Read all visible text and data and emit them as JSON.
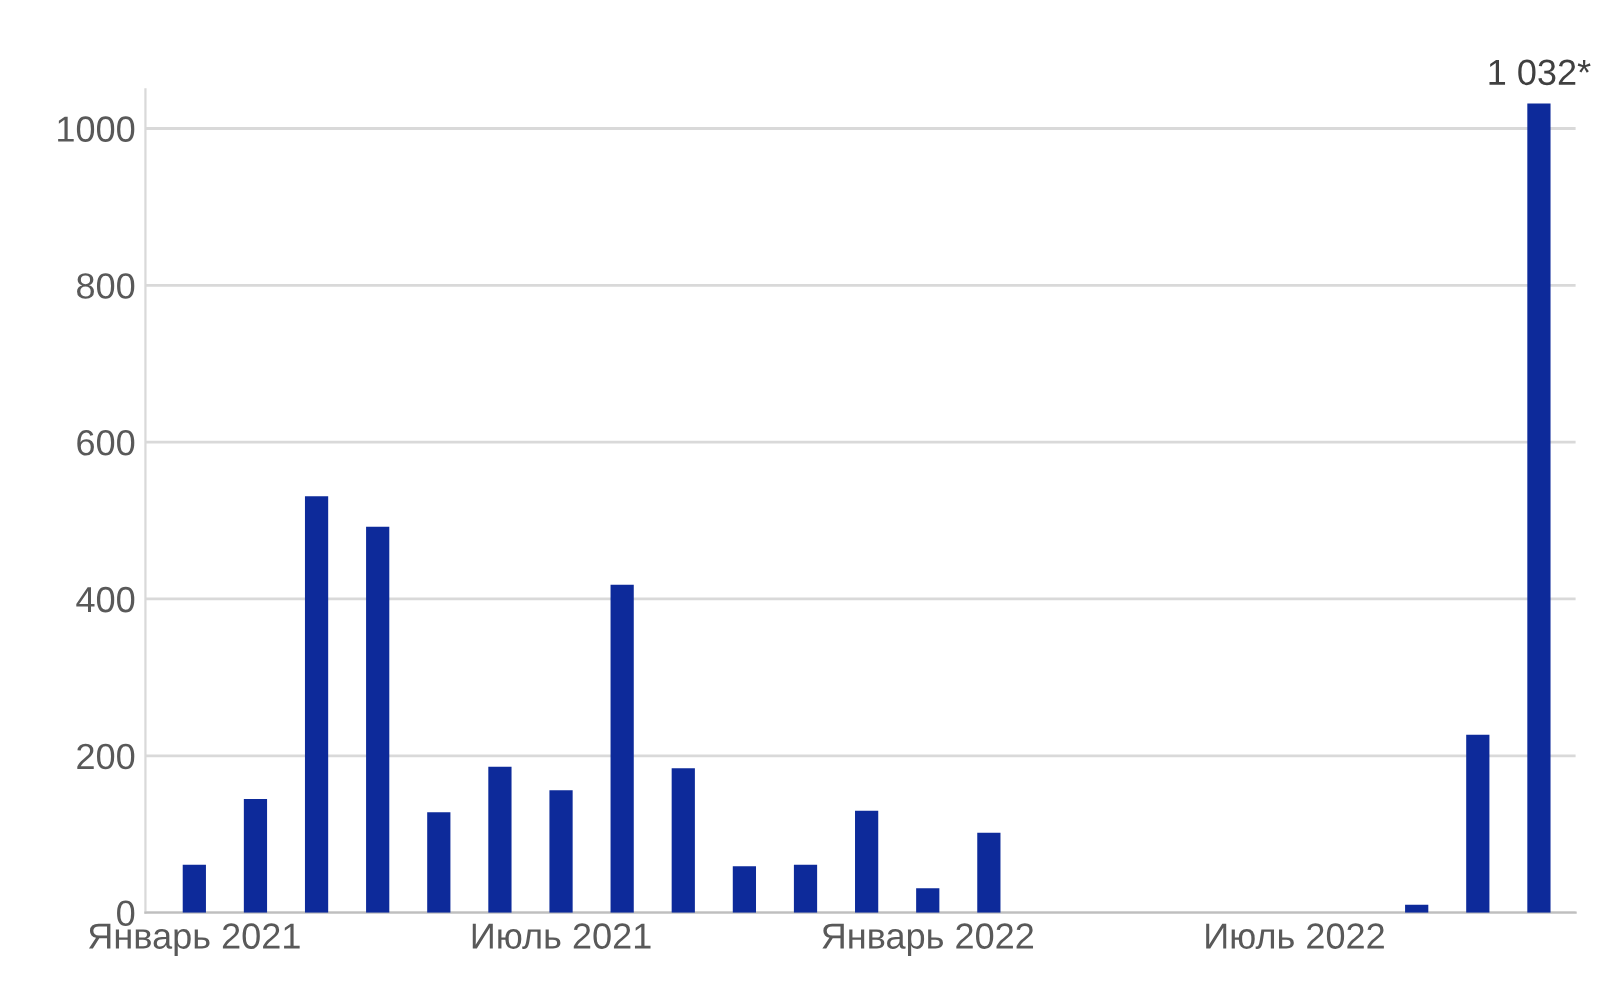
{
  "chart_data": {
    "type": "bar",
    "categories": [
      "Январь 2021",
      null,
      null,
      null,
      null,
      null,
      "Июль 2021",
      null,
      null,
      null,
      null,
      null,
      "Январь 2022",
      null,
      null,
      null,
      null,
      null,
      "Июль 2022",
      null,
      null,
      null,
      null
    ],
    "values": [
      61,
      145,
      531,
      492,
      128,
      186,
      156,
      418,
      184,
      59,
      61,
      130,
      31,
      102,
      null,
      null,
      null,
      null,
      null,
      null,
      10,
      227,
      1032
    ],
    "value_labels": [
      null,
      null,
      null,
      null,
      null,
      null,
      null,
      null,
      null,
      null,
      null,
      null,
      null,
      null,
      null,
      null,
      null,
      null,
      null,
      null,
      null,
      null,
      "1 032*"
    ],
    "color": "#0d2a9a",
    "ylim": [
      0,
      1050
    ],
    "yticks": [
      0,
      200,
      400,
      600,
      800,
      1000
    ],
    "grid": "y",
    "legend": false
  }
}
